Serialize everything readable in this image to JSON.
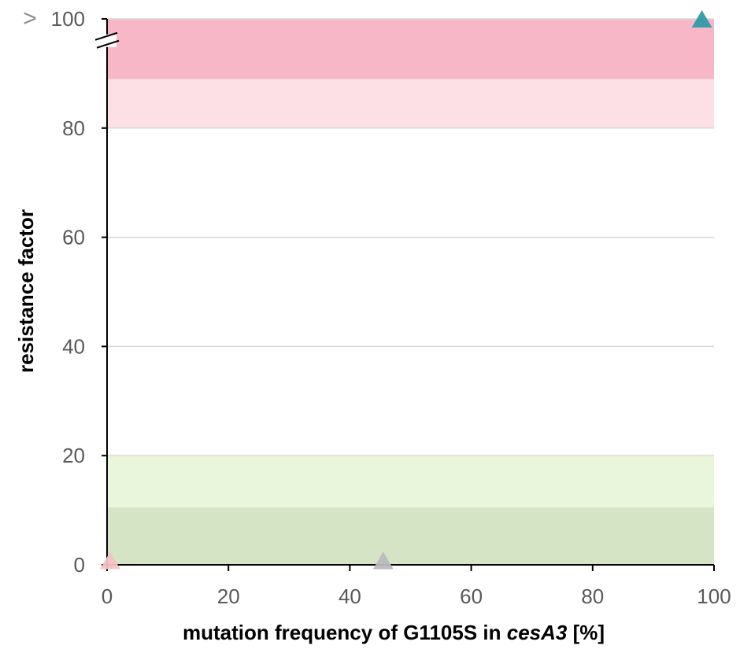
{
  "chart_data": {
    "type": "scatter",
    "xlabel_parts": [
      "mutation frequency of G1105S in ",
      "cesA3",
      " [%]"
    ],
    "ylabel": "resistance factor",
    "xlim": [
      0,
      100
    ],
    "ylim": [
      0,
      100
    ],
    "x_ticks": [
      "0",
      "20",
      "40",
      "60",
      "80",
      "100"
    ],
    "y_ticks": [
      "0",
      "20",
      "40",
      "60",
      "80",
      "100"
    ],
    "y_overflow_marker": ">",
    "y_axis_break": true,
    "grid": "horizontal",
    "bands": [
      {
        "y0": 0,
        "y1": 20,
        "color": "#eaf6dc"
      },
      {
        "y0": 0,
        "y1": 10.5,
        "color": "#d6e4c6"
      },
      {
        "y0": 80,
        "y1": 100,
        "color": "#fde0e6"
      },
      {
        "y0": 89,
        "y1": 100,
        "color": "#f7b7c7"
      }
    ],
    "points": [
      {
        "x": 0.5,
        "y": 0.8,
        "marker": "triangle",
        "color": "#f6c2c4"
      },
      {
        "x": 45.5,
        "y": 0.8,
        "marker": "triangle",
        "color": "#b9b9bd"
      },
      {
        "x": 98,
        "y": 100,
        "marker": "triangle",
        "color": "#2f9ba8"
      }
    ]
  }
}
